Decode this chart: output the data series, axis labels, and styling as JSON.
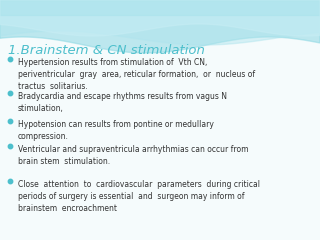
{
  "title": "1.Brainstem & CN stimulation",
  "title_color": "#4dbfcc",
  "title_fontsize": 9.5,
  "bg_color": "#f5fbfc",
  "wave_color1": "#8dd8e3",
  "wave_color2": "#aee4ed",
  "wave_color3": "#c8eef5",
  "bullet_color": "#4dbfcc",
  "text_color": "#333333",
  "text_fontsize": 5.5,
  "bullet_items": [
    "Hypertension results from stimulation of  Vth CN,\nperiventricular  gray  area, reticular formation,  or  nucleus of\ntractus  solitarius.",
    "Bradycardia and escape rhythms results from vagus N\nstimulation,",
    "Hypotension can results from pontine or medullary\ncompression.",
    "Ventricular and supraventricula arrhythmias can occur from\nbrain stem  stimulation.",
    "Close  attention  to  cardiovascular  parameters  during critical\nperiods of surgery is essential  and  surgeon may inform of\nbrainstem  encroachment"
  ]
}
